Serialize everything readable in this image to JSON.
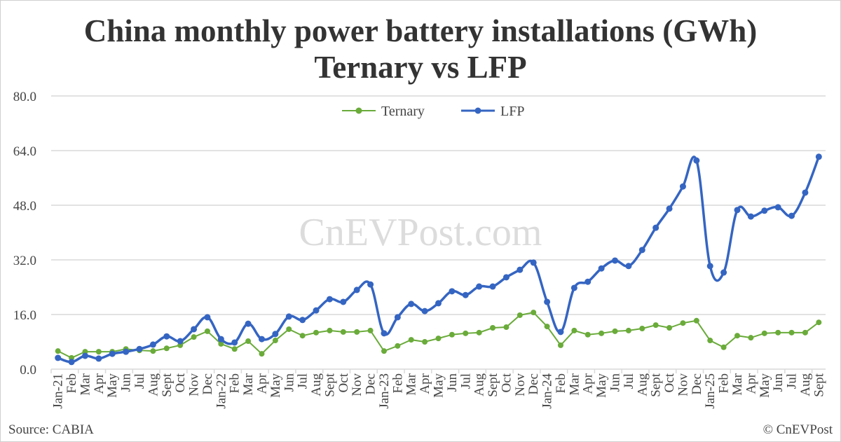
{
  "title_line1": "China monthly power battery installations (GWh)",
  "title_line2": "Ternary vs LFP",
  "watermark": "CnEVPost.com",
  "source": "Source: CABIA",
  "copyright": "© CnEVPost",
  "chart_data": {
    "type": "line",
    "title": "China monthly power battery installations (GWh) Ternary vs LFP",
    "xlabel": "",
    "ylabel": "GWh",
    "ylim": [
      0,
      80
    ],
    "yticks": [
      "0.0",
      "16.0",
      "32.0",
      "48.0",
      "64.0",
      "80.0"
    ],
    "grid": true,
    "legend": "top-center",
    "categories": [
      "Jan-21",
      "Feb",
      "Mar",
      "Apr",
      "May",
      "Jun",
      "Jul",
      "Aug",
      "Sept",
      "Oct",
      "Nov",
      "Dec",
      "Jan-22",
      "Feb",
      "Mar",
      "Apr",
      "May",
      "Jun",
      "Jul",
      "Aug",
      "Sept",
      "Oct",
      "Nov",
      "Dec",
      "Jan-23",
      "Feb",
      "Mar",
      "Apr",
      "May",
      "Jun",
      "Jul",
      "Aug",
      "Sept",
      "Oct",
      "Nov",
      "Dec",
      "Jan-24",
      "Feb",
      "Mar",
      "Apr",
      "May",
      "Jun",
      "Jul",
      "Aug",
      "Sept",
      "Oct",
      "Nov",
      "Dec",
      "Jan-25",
      "Feb",
      "Mar",
      "Apr",
      "May",
      "Jun",
      "Jul",
      "Aug",
      "Sept"
    ],
    "series": [
      {
        "name": "Ternary",
        "color": "#6aab3a",
        "values": [
          5.3,
          3.3,
          5.1,
          5.1,
          5.1,
          5.9,
          5.5,
          5.3,
          6.1,
          7.0,
          9.4,
          11.1,
          7.4,
          5.9,
          8.2,
          4.5,
          8.4,
          11.7,
          9.8,
          10.7,
          11.3,
          10.9,
          10.9,
          11.3,
          5.3,
          6.8,
          8.6,
          8.0,
          9.0,
          10.1,
          10.5,
          10.7,
          12.1,
          12.3,
          15.8,
          16.6,
          12.5,
          7.0,
          11.3,
          10.1,
          10.5,
          11.1,
          11.3,
          11.9,
          12.9,
          12.1,
          13.5,
          14.2,
          8.4,
          6.4,
          9.8,
          9.2,
          10.5,
          10.7,
          10.7,
          10.7,
          13.7
        ]
      },
      {
        "name": "LFP",
        "color": "#3565c2",
        "values": [
          3.3,
          2.1,
          3.9,
          3.1,
          4.5,
          5.1,
          5.9,
          7.2,
          9.6,
          8.2,
          11.7,
          15.2,
          8.8,
          7.8,
          13.3,
          8.8,
          10.3,
          15.4,
          14.4,
          17.2,
          20.5,
          19.7,
          23.2,
          24.8,
          10.5,
          15.2,
          19.1,
          17.0,
          19.3,
          22.8,
          21.7,
          24.2,
          24.2,
          26.9,
          29.1,
          31.2,
          19.7,
          10.9,
          23.8,
          25.6,
          29.5,
          31.8,
          30.2,
          34.9,
          41.4,
          47.0,
          53.5,
          61.1,
          30.2,
          28.3,
          46.6,
          44.7,
          46.4,
          47.4,
          44.9,
          51.7,
          62.2
        ]
      }
    ]
  }
}
